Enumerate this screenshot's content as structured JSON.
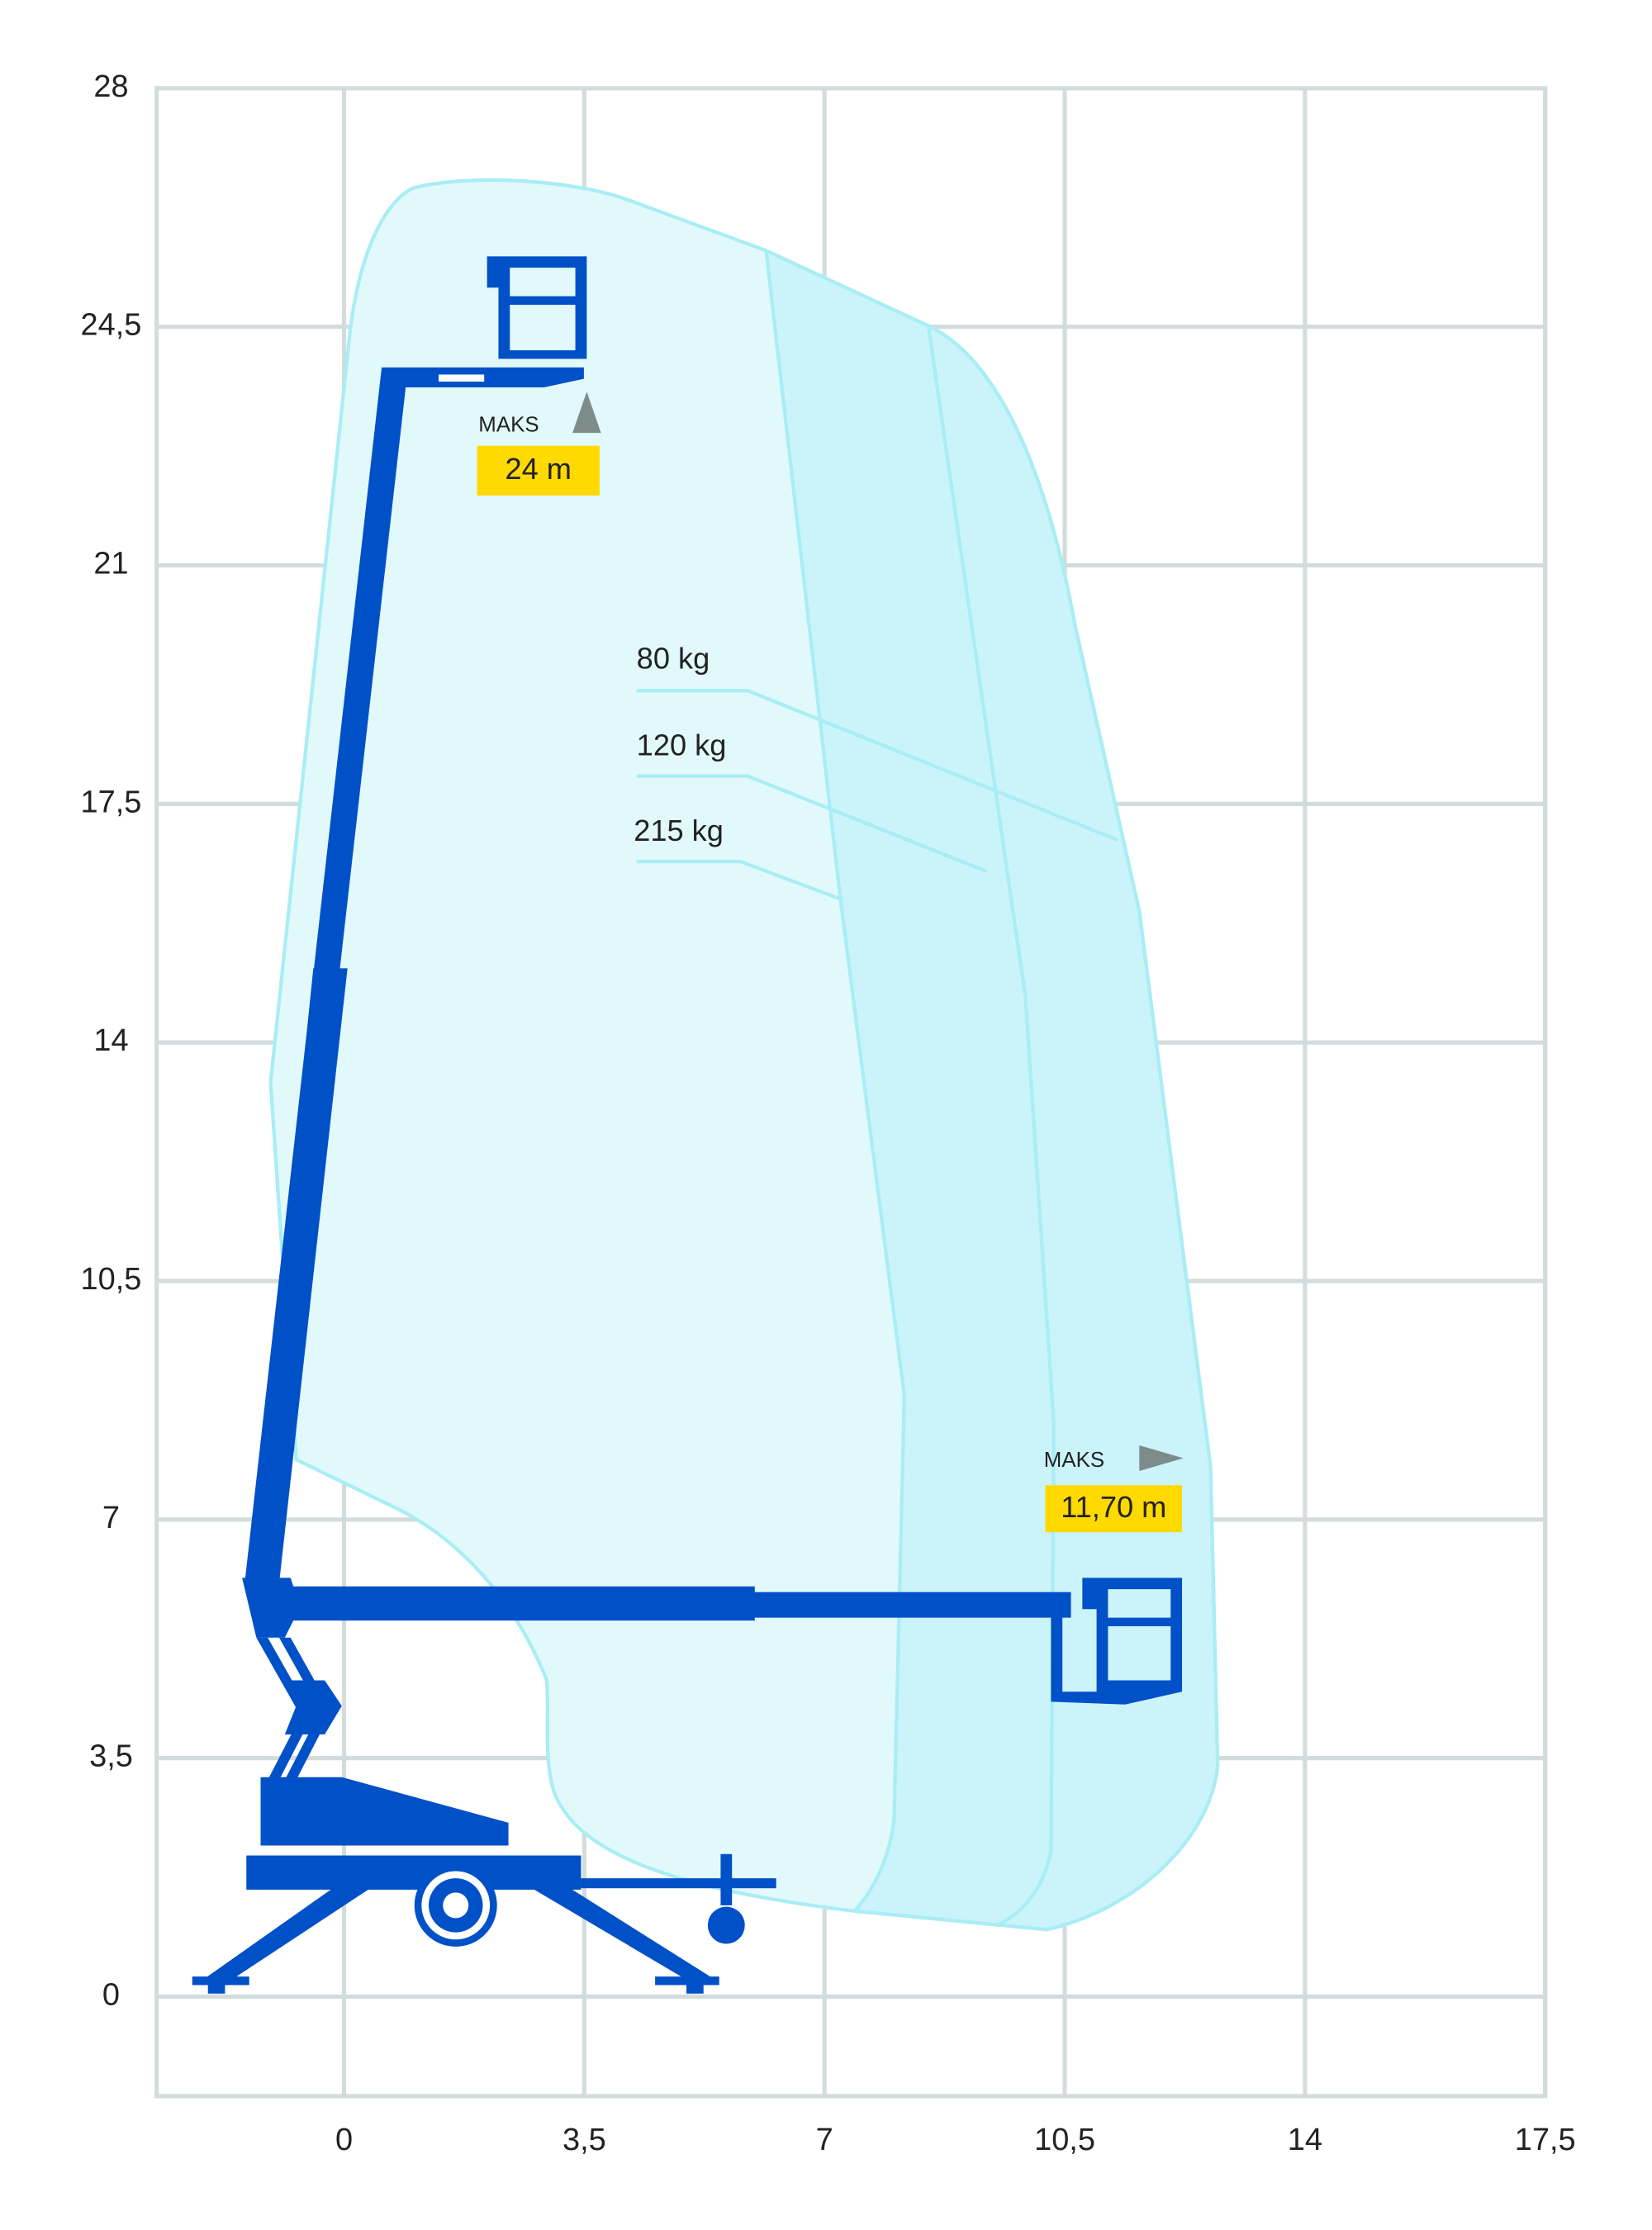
{
  "chart_data": {
    "type": "range-diagram",
    "xlim": [
      -2.73,
      17.5
    ],
    "ylim": [
      -1.46,
      28
    ],
    "xticks": [
      0,
      {
        "value": 3.5,
        "label": "3,5"
      },
      7,
      {
        "value": 10.5,
        "label": "10,5"
      },
      14,
      {
        "value": 17.5,
        "label": "17,5"
      }
    ],
    "yticks": [
      0,
      {
        "value": 3.5,
        "label": "3,5"
      },
      7,
      {
        "value": 10.5,
        "label": "10,5"
      },
      14,
      {
        "value": 17.5,
        "label": "17,5"
      },
      21,
      {
        "value": 24.5,
        "label": "24,5"
      },
      28
    ],
    "grid": true,
    "annotations": [
      "MAKS",
      "24 m",
      "MAKS",
      "11,70 m",
      "80 kg",
      "120 kg",
      "215 kg"
    ]
  }
}
